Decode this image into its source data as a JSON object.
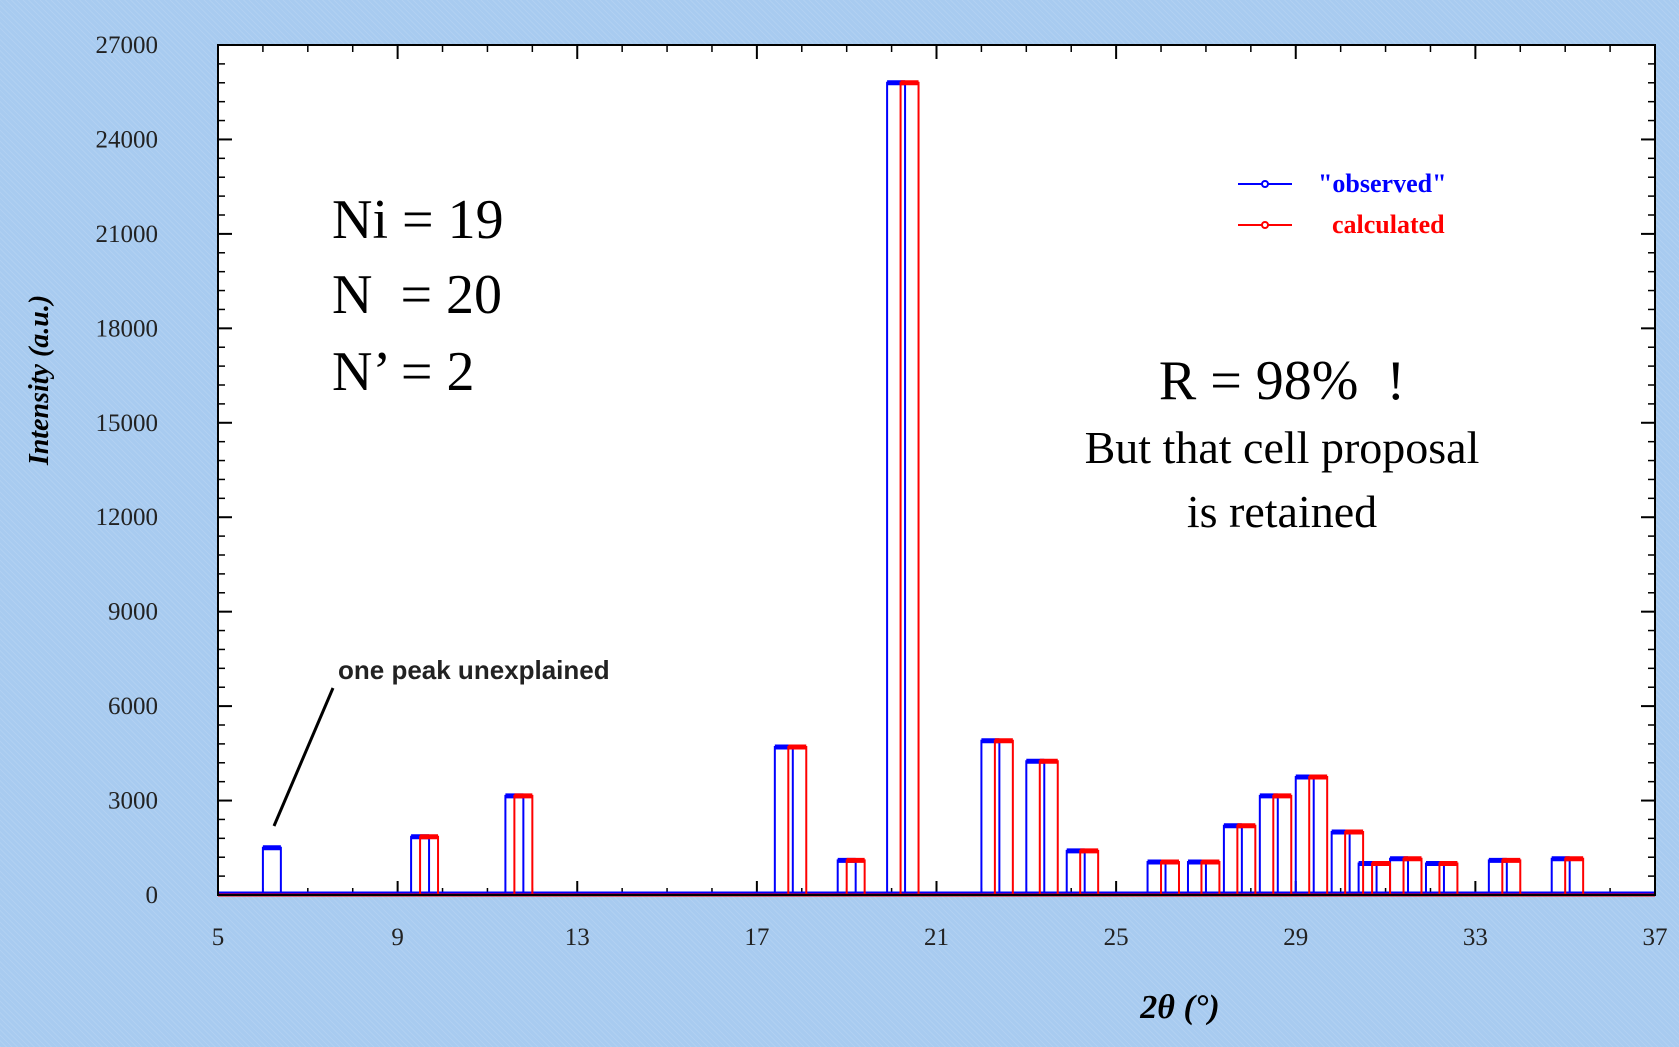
{
  "chart_data": {
    "type": "bar",
    "xlabel": "2θ (°)",
    "ylabel": "Intensity (a.u.)",
    "xlim": [
      5,
      37
    ],
    "ylim": [
      0,
      27000
    ],
    "xticks": [
      5,
      9,
      13,
      17,
      21,
      25,
      29,
      33,
      37
    ],
    "yticks": [
      0,
      3000,
      6000,
      9000,
      12000,
      15000,
      18000,
      21000,
      24000,
      27000
    ],
    "legend_position": "top-right",
    "series": [
      {
        "name": "\"observed\"",
        "color": "#0000ff",
        "x": [
          6.2,
          9.5,
          11.6,
          17.6,
          19.0,
          20.1,
          22.2,
          23.2,
          24.1,
          25.9,
          26.8,
          27.6,
          28.4,
          29.2,
          30.0,
          30.6,
          31.3,
          32.1,
          33.5,
          34.9
        ],
        "values": [
          1500,
          1850,
          3150,
          4700,
          1100,
          25800,
          4900,
          4250,
          1400,
          1050,
          1050,
          2200,
          3150,
          3750,
          2000,
          1000,
          1150,
          1000,
          1100,
          1150
        ]
      },
      {
        "name": "calculated",
        "color": "#ff0000",
        "x": [
          9.7,
          11.8,
          17.9,
          19.2,
          20.4,
          22.5,
          23.5,
          24.4,
          26.2,
          27.1,
          27.9,
          28.7,
          29.5,
          30.3,
          30.9,
          31.6,
          32.4,
          33.8,
          35.2
        ],
        "values": [
          1850,
          3150,
          4700,
          1100,
          25800,
          4900,
          4250,
          1400,
          1050,
          1050,
          2200,
          3150,
          3750,
          2000,
          1000,
          1150,
          1000,
          1100,
          1150
        ]
      }
    ]
  },
  "annotations": {
    "ni_line": "Ni = 19",
    "n_line": "N  = 20",
    "nprime_line": "N’ = 2",
    "r_line": "R = 98%  !",
    "note_line1": "But that cell proposal",
    "note_line2": "is retained",
    "unexplained_label": "one peak unexplained"
  }
}
